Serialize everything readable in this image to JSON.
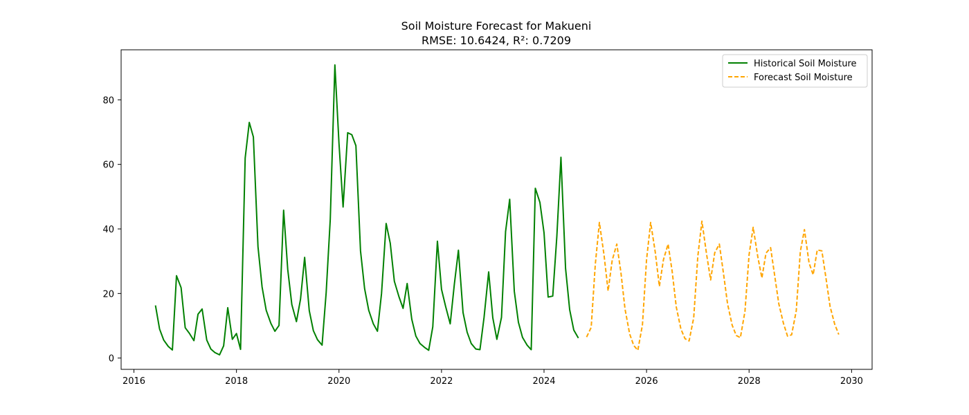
{
  "chart_data": {
    "type": "line",
    "title": "Soil Moisture Forecast for Makueni",
    "subtitle": "RMSE: 10.6424, R²: 0.7209",
    "xlabel": "",
    "ylabel": "",
    "xlim": [
      2015.75,
      2030.4
    ],
    "ylim": [
      -3.5,
      95.5
    ],
    "x_ticks": [
      2016,
      2018,
      2020,
      2022,
      2024,
      2026,
      2028,
      2030
    ],
    "y_ticks": [
      0,
      20,
      40,
      60,
      80
    ],
    "grid": false,
    "legend_position": "top-right",
    "series": [
      {
        "name": "Historical Soil Moisture",
        "color": "#008000",
        "style": "solid",
        "x": [
          2016.42,
          2016.5,
          2016.58,
          2016.67,
          2016.75,
          2016.83,
          2016.92,
          2017.0,
          2017.08,
          2017.17,
          2017.25,
          2017.33,
          2017.42,
          2017.5,
          2017.58,
          2017.67,
          2017.75,
          2017.83,
          2017.92,
          2018.0,
          2018.08,
          2018.17,
          2018.25,
          2018.33,
          2018.42,
          2018.5,
          2018.58,
          2018.67,
          2018.75,
          2018.83,
          2018.92,
          2019.0,
          2019.08,
          2019.17,
          2019.25,
          2019.33,
          2019.42,
          2019.5,
          2019.58,
          2019.67,
          2019.75,
          2019.83,
          2019.92,
          2020.0,
          2020.08,
          2020.17,
          2020.25,
          2020.33,
          2020.42,
          2020.5,
          2020.58,
          2020.67,
          2020.75,
          2020.83,
          2020.92,
          2021.0,
          2021.08,
          2021.17,
          2021.25,
          2021.33,
          2021.42,
          2021.5,
          2021.58,
          2021.67,
          2021.75,
          2021.83,
          2021.92,
          2022.0,
          2022.08,
          2022.17,
          2022.25,
          2022.33,
          2022.42,
          2022.5,
          2022.58,
          2022.67,
          2022.75,
          2022.83,
          2022.92,
          2023.0,
          2023.08,
          2023.17,
          2023.25,
          2023.33,
          2023.42,
          2023.5,
          2023.58,
          2023.67,
          2023.75,
          2023.83,
          2023.92,
          2024.0,
          2024.08,
          2024.17,
          2024.25,
          2024.33,
          2024.42,
          2024.5,
          2024.58,
          2024.67
        ],
        "values": [
          16.3,
          9.0,
          5.6,
          3.6,
          2.5,
          25.5,
          21.8,
          9.4,
          7.7,
          5.4,
          13.6,
          15.2,
          5.6,
          2.8,
          1.7,
          1.0,
          3.8,
          15.6,
          5.8,
          7.6,
          2.7,
          62.0,
          73.0,
          68.5,
          34.5,
          22.0,
          14.8,
          10.8,
          8.3,
          10.1,
          45.8,
          27.5,
          16.6,
          11.3,
          18.3,
          31.2,
          14.7,
          8.5,
          5.7,
          4.0,
          20.3,
          43.0,
          90.8,
          66.5,
          46.8,
          69.8,
          69.2,
          65.8,
          33.2,
          21.5,
          14.8,
          10.6,
          8.3,
          20.0,
          41.7,
          35.6,
          23.8,
          19.0,
          15.4,
          23.1,
          12.0,
          6.8,
          4.5,
          3.3,
          2.4,
          9.7,
          36.2,
          21.3,
          16.0,
          10.6,
          22.8,
          33.4,
          14.1,
          8.0,
          4.5,
          2.8,
          2.6,
          12.6,
          26.7,
          12.5,
          5.8,
          12.6,
          39.2,
          49.2,
          20.7,
          11.1,
          6.4,
          4.0,
          2.6,
          52.6,
          48.2,
          38.8,
          18.9,
          19.2,
          37.7,
          62.2,
          27.8,
          15.0,
          8.7,
          6.2
        ]
      },
      {
        "name": "Forecast Soil Moisture",
        "color": "#FFA500",
        "style": "dashed",
        "x": [
          2024.83,
          2024.92,
          2025.0,
          2025.08,
          2025.17,
          2025.25,
          2025.33,
          2025.42,
          2025.5,
          2025.58,
          2025.67,
          2025.75,
          2025.83,
          2025.92,
          2026.0,
          2026.08,
          2026.17,
          2026.25,
          2026.33,
          2026.42,
          2026.5,
          2026.58,
          2026.67,
          2026.75,
          2026.83,
          2026.92,
          2027.0,
          2027.08,
          2027.17,
          2027.25,
          2027.33,
          2027.42,
          2027.5,
          2027.58,
          2027.67,
          2027.75,
          2027.83,
          2027.92,
          2028.0,
          2028.08,
          2028.17,
          2028.25,
          2028.33,
          2028.42,
          2028.5,
          2028.58,
          2028.67,
          2028.75,
          2028.83,
          2028.92,
          2029.0,
          2029.08,
          2029.17,
          2029.25,
          2029.33,
          2029.42,
          2029.5,
          2029.58,
          2029.67,
          2029.75
        ],
        "values": [
          6.5,
          9.5,
          29.0,
          42.0,
          32.0,
          20.8,
          30.3,
          35.3,
          26.5,
          15.2,
          7.5,
          3.9,
          2.4,
          10.3,
          30.5,
          42.0,
          32.8,
          22.2,
          30.5,
          35.3,
          26.8,
          15.8,
          9.0,
          6.0,
          5.3,
          12.5,
          31.5,
          42.4,
          32.3,
          24.2,
          32.6,
          35.3,
          26.3,
          16.8,
          10.2,
          7.0,
          6.3,
          14.5,
          32.0,
          40.5,
          31.4,
          24.8,
          32.5,
          34.2,
          25.5,
          16.8,
          10.8,
          6.8,
          7.2,
          14.6,
          33.0,
          39.8,
          29.5,
          25.8,
          33.5,
          33.2,
          24.8,
          16.0,
          10.5,
          7.3
        ]
      }
    ]
  }
}
